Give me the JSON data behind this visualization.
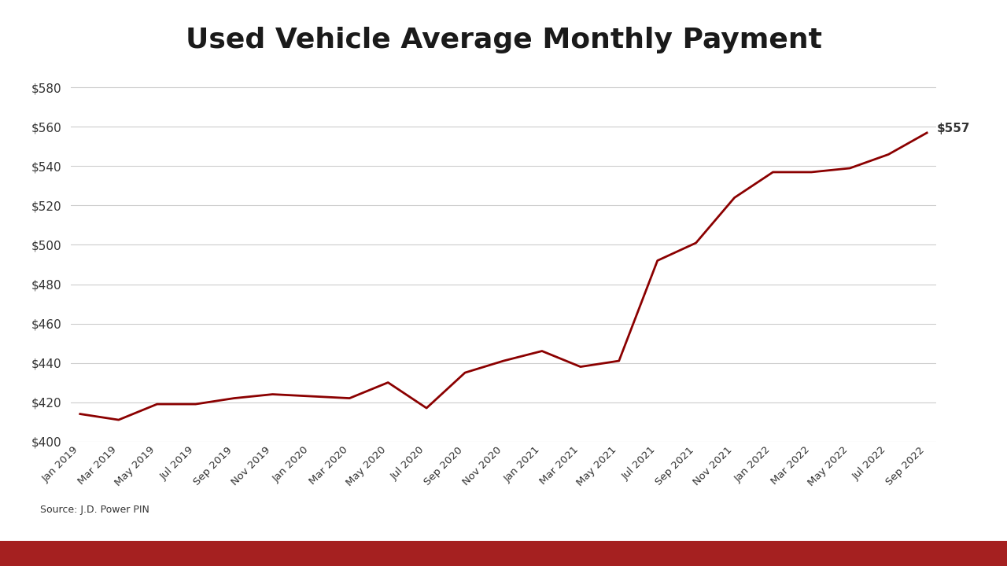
{
  "title": "Used Vehicle Average Monthly Payment",
  "line_color": "#8B0000",
  "background_color": "#FFFFFF",
  "footer_bar_color": "#A52020",
  "source_text": "Source: J.D. Power PIN",
  "last_value_label": "$557",
  "y_min": 400,
  "y_max": 590,
  "y_tick_step": 20,
  "x_tick_labels": [
    "Jan 2019",
    "Mar 2019",
    "May 2019",
    "Jul 2019",
    "Sep 2019",
    "Nov 2019",
    "Jan 2020",
    "Mar 2020",
    "May 2020",
    "Jul 2020",
    "Sep 2020",
    "Nov 2020",
    "Jan 2021",
    "Mar 2021",
    "May 2021",
    "Jul 2021",
    "Sep 2021",
    "Nov 2021",
    "Jan 2022",
    "Mar 2022",
    "May 2022",
    "Jul 2022",
    "Sep 2022"
  ],
  "tick_values": [
    414,
    411,
    419,
    419,
    422,
    424,
    423,
    422,
    430,
    417,
    435,
    441,
    446,
    438,
    441,
    492,
    501,
    524,
    537,
    537,
    539,
    546,
    557
  ]
}
